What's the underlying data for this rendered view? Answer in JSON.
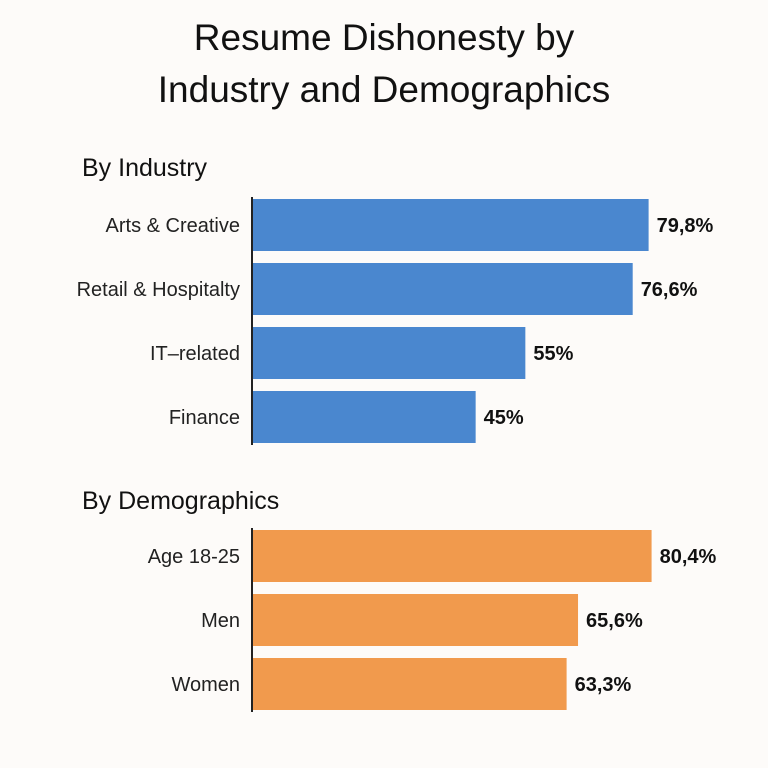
{
  "chart_data": {
    "type": "bar",
    "orientation": "horizontal",
    "title": "Resume Dishonesty by Industry and Demographics",
    "title_lines": [
      "Resume Dishonesty by",
      "Industry and Demographics"
    ],
    "grid": false,
    "xlim": [
      0,
      100
    ],
    "groups": [
      {
        "title": "By Industry",
        "color": "#4a87cf",
        "categories": [
          "Arts & Creative",
          "Retail & Hospitalty",
          "IT–related",
          "Finance"
        ],
        "values": [
          79.8,
          76.6,
          55,
          45
        ],
        "value_labels": [
          "79,8%",
          "76,6%",
          "55%",
          "45%"
        ]
      },
      {
        "title": "By Demographics",
        "color": "#f19a4d",
        "categories": [
          "Age 18-25",
          "Men",
          "Women"
        ],
        "values": [
          80.4,
          65.6,
          63.3
        ],
        "value_labels": [
          "80,4%",
          "65,6%",
          "63,3%"
        ]
      }
    ]
  }
}
